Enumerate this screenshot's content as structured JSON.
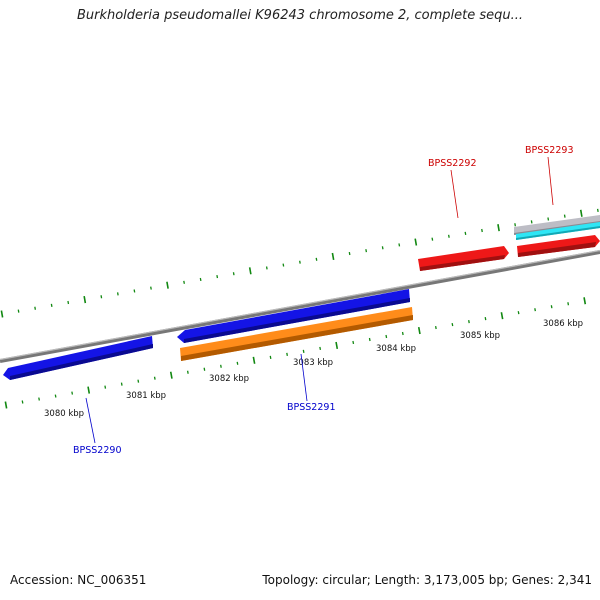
{
  "title": "Burkholderia pseudomallei K96243 chromosome 2, complete sequ...",
  "footer": {
    "accession": "Accession: NC_006351",
    "topology": "Topology: circular; Length: 3,173,005 bp; Genes: 2,341"
  },
  "scale_labels": [
    "3080 kbp",
    "3081 kbp",
    "3082 kbp",
    "3083 kbp",
    "3084 kbp",
    "3085 kbp",
    "3086 kbp"
  ],
  "gene_labels": [
    "BPSS2290",
    "BPSS2291",
    "BPSS2292",
    "BPSS2293"
  ],
  "colors": {
    "backbone": "#888888",
    "forward_gene": "#ee1111",
    "reverse_gene": "#1111dd",
    "reverse_cds": "#ff8c1a",
    "other_feature": "#22e0f0",
    "grey_feature": "#b8b8c0",
    "tick": "#118811",
    "forward_label": "#cc0000",
    "reverse_label": "#0000cc"
  }
}
